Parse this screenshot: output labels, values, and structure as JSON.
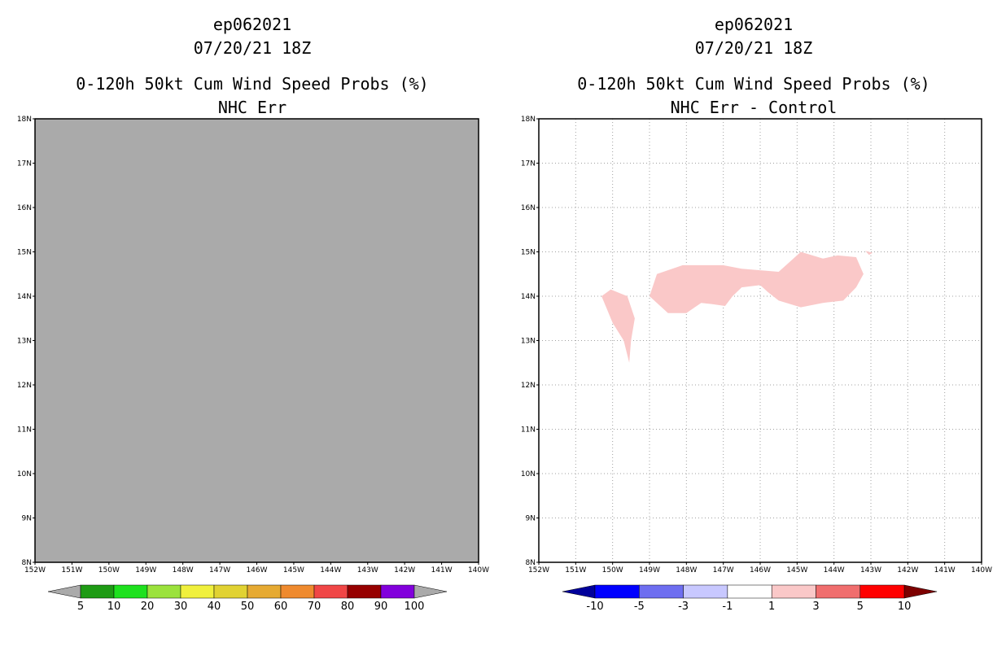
{
  "left_panel": {
    "title_lines": [
      "ep062021",
      "07/20/21 18Z",
      "0-120h 50kt Cum Wind Speed Probs (%)",
      "NHC Err"
    ],
    "background_color": "#aaaaaa",
    "lat_ticks": [
      "18N",
      "17N",
      "16N",
      "15N",
      "14N",
      "13N",
      "12N",
      "11N",
      "10N",
      "9N",
      "8N"
    ],
    "lon_ticks": [
      "152W",
      "151W",
      "150W",
      "149W",
      "148W",
      "147W",
      "146W",
      "145W",
      "144W",
      "143W",
      "142W",
      "141W",
      "140W"
    ],
    "colorbar": {
      "labels": [
        "5",
        "10",
        "20",
        "30",
        "40",
        "50",
        "60",
        "70",
        "80",
        "90",
        "100"
      ],
      "colors": [
        "#aaaaaa",
        "#1e9b14",
        "#1ee11e",
        "#9be23c",
        "#f0f03c",
        "#e1d232",
        "#e6aa32",
        "#ef8a2e",
        "#f04646",
        "#960000",
        "#8200dc",
        "#aaaaaa"
      ]
    }
  },
  "right_panel": {
    "title_lines": [
      "ep062021",
      "07/20/21 18Z",
      "0-120h 50kt Cum Wind Speed Probs (%)",
      "NHC Err - Control"
    ],
    "background_color": "#ffffff",
    "grid": "dotted",
    "lat_ticks": [
      "18N",
      "17N",
      "16N",
      "15N",
      "14N",
      "13N",
      "12N",
      "11N",
      "10N",
      "9N",
      "8N"
    ],
    "lon_ticks": [
      "152W",
      "151W",
      "150W",
      "149W",
      "148W",
      "147W",
      "146W",
      "145W",
      "144W",
      "143W",
      "142W",
      "141W",
      "140W"
    ],
    "contour_color": "#fac8c8",
    "contour_regions": [
      {
        "label": "west-blob",
        "lonlat": [
          [
            -150.3,
            14.0
          ],
          [
            -150.05,
            14.15
          ],
          [
            -149.6,
            14.0
          ],
          [
            -149.4,
            13.5
          ],
          [
            -149.5,
            13.0
          ],
          [
            -149.55,
            12.5
          ],
          [
            -149.7,
            13.0
          ],
          [
            -150.0,
            13.4
          ]
        ]
      },
      {
        "label": "main-band",
        "lonlat": [
          [
            -149.0,
            14.0
          ],
          [
            -148.8,
            14.5
          ],
          [
            -148.1,
            14.7
          ],
          [
            -147.0,
            14.7
          ],
          [
            -146.5,
            14.62
          ],
          [
            -145.5,
            14.55
          ],
          [
            -145.1,
            14.85
          ],
          [
            -144.9,
            15.0
          ],
          [
            -144.3,
            14.85
          ],
          [
            -143.9,
            14.92
          ],
          [
            -143.4,
            14.88
          ],
          [
            -143.2,
            14.5
          ],
          [
            -143.4,
            14.2
          ],
          [
            -143.75,
            13.9
          ],
          [
            -144.3,
            13.85
          ],
          [
            -144.9,
            13.75
          ],
          [
            -145.5,
            13.9
          ],
          [
            -145.8,
            14.1
          ],
          [
            -146.0,
            14.25
          ],
          [
            -146.5,
            14.2
          ],
          [
            -146.75,
            14.0
          ],
          [
            -146.95,
            13.78
          ],
          [
            -147.3,
            13.82
          ],
          [
            -147.6,
            13.85
          ],
          [
            -148.0,
            13.62
          ],
          [
            -148.5,
            13.62
          ]
        ]
      },
      {
        "label": "east-speck",
        "lonlat": [
          [
            -143.15,
            15.02
          ],
          [
            -142.95,
            14.98
          ],
          [
            -143.05,
            14.93
          ]
        ]
      }
    ],
    "colorbar": {
      "labels": [
        "-10",
        "-5",
        "-3",
        "-1",
        "1",
        "3",
        "5",
        "10"
      ],
      "colors": [
        "#00009b",
        "#0000ff",
        "#6e6ef0",
        "#c8c8ff",
        "#ffffff",
        "#fac8c8",
        "#f06e6e",
        "#ff0000",
        "#7d0000"
      ]
    }
  },
  "map_range": {
    "lon": [
      -152,
      -140
    ],
    "lat": [
      8,
      18
    ]
  }
}
